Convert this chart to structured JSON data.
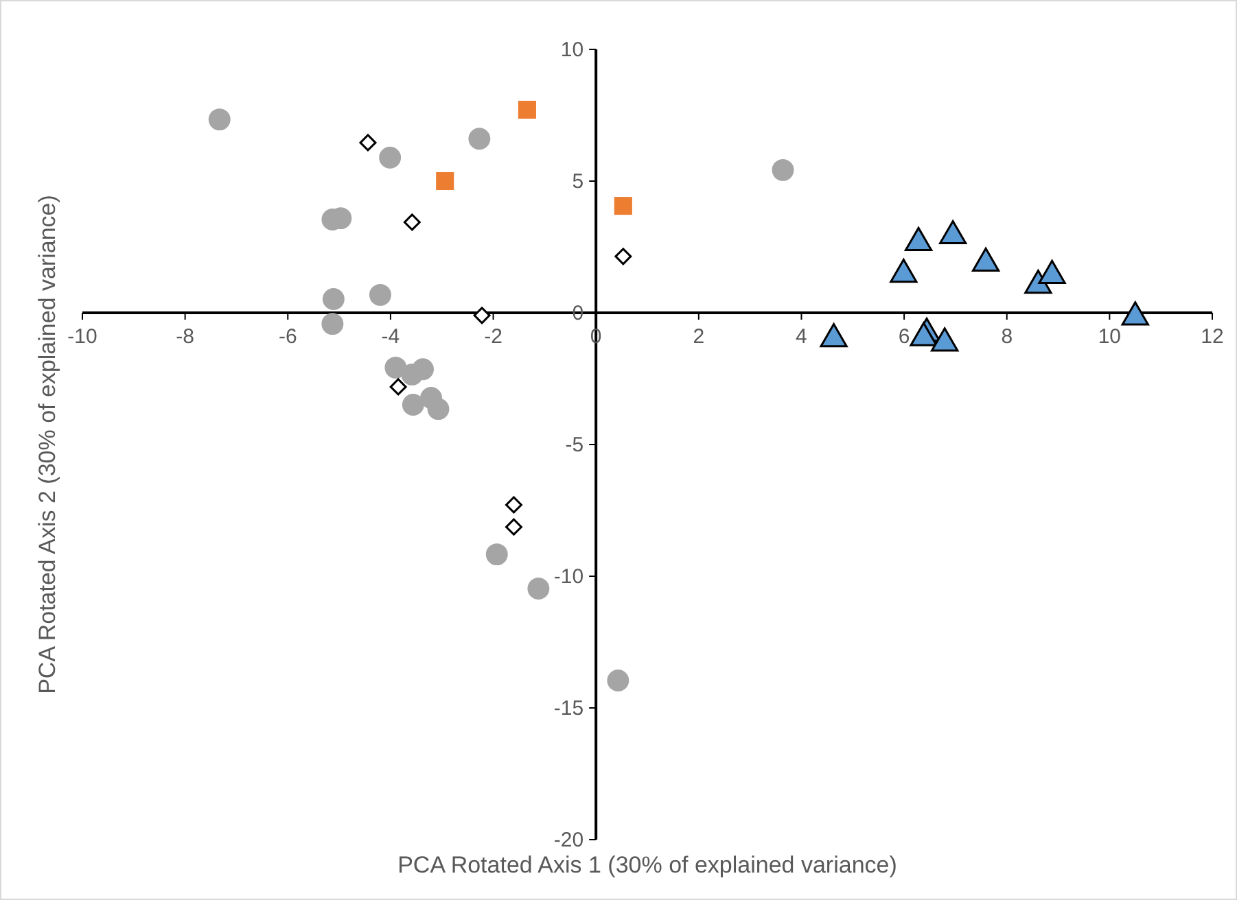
{
  "chart_data": {
    "type": "scatter",
    "xlabel": "PCA Rotated Axis 1 (30% of explained variance)",
    "ylabel": "PCA Rotated Axis 2 (30% of explained variance)",
    "xlim": [
      -10,
      12
    ],
    "xticks": [
      -10,
      -8,
      -6,
      -4,
      -2,
      0,
      2,
      4,
      6,
      8,
      10,
      12
    ],
    "ylim": [
      -20,
      10
    ],
    "yticks": [
      -20,
      -15,
      -10,
      -5,
      0,
      5,
      10
    ],
    "grid": false,
    "series": [
      {
        "color": "#a5a5a5",
        "marker": "circle",
        "x": [
          -7.33,
          -4.01,
          -2.27,
          -5.13,
          -4.97,
          -5.11,
          -5.13,
          -4.2,
          -3.9,
          -3.58,
          -3.37,
          -3.56,
          -3.21,
          -3.07,
          3.64,
          -1.93,
          -1.12,
          0.43
        ],
        "values": [
          7.34,
          5.89,
          6.61,
          3.54,
          3.59,
          0.52,
          -0.42,
          0.68,
          -2.08,
          -2.34,
          -2.14,
          -3.49,
          -3.23,
          -3.65,
          5.42,
          -9.17,
          -10.47,
          -13.96
        ]
      },
      {
        "color": "#ed7d31",
        "marker": "square",
        "x": [
          -1.34,
          -2.94,
          0.53
        ],
        "values": [
          7.71,
          5.0,
          4.06
        ]
      },
      {
        "color": "#ffffff",
        "marker": "diamond",
        "x": [
          -4.44,
          -3.58,
          -2.22,
          -3.85,
          0.53,
          -1.6,
          -1.6
        ],
        "values": [
          6.46,
          3.44,
          -0.1,
          -2.81,
          2.14,
          -7.29,
          -8.13
        ]
      },
      {
        "color": "#5b9bd5",
        "marker": "triangle",
        "x": [
          4.63,
          5.99,
          6.28,
          6.95,
          7.59,
          8.61,
          8.88,
          10.5,
          6.44,
          6.38,
          6.79
        ],
        "values": [
          -0.99,
          1.46,
          2.66,
          2.92,
          1.88,
          1.04,
          1.41,
          -0.16,
          -0.78,
          -0.95,
          -1.15
        ]
      }
    ]
  }
}
